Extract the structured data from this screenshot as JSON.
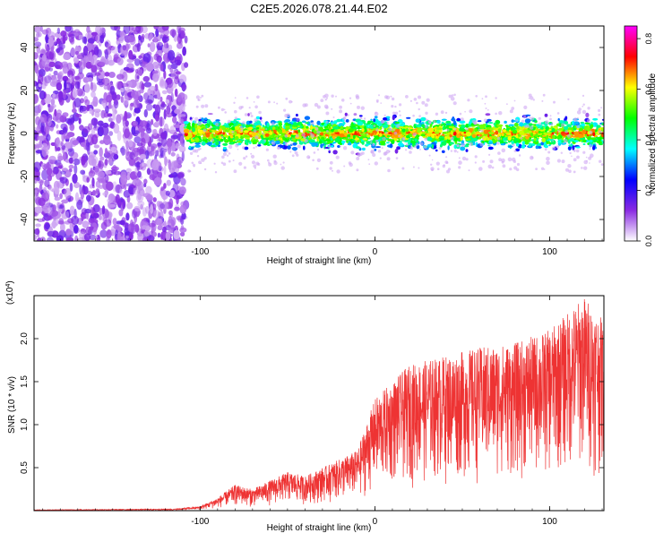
{
  "title": "C2E5.2026.078.21.44.E02",
  "chart_data": [
    {
      "type": "heatmap",
      "xlabel": "Height of straight line (km)",
      "ylabel": "Frequency (Hz)",
      "xlim": [
        -195,
        131
      ],
      "ylim": [
        -50,
        50
      ],
      "xticks": [
        -100,
        0,
        100
      ],
      "yticks": [
        -40,
        -20,
        0,
        20,
        40
      ],
      "trace_center_hz": 0,
      "noise_region_x": [
        -195,
        -108
      ],
      "colorbar": {
        "label": "Normalized spectral amplitude",
        "range": [
          0.0,
          0.85
        ],
        "ticks": [
          "0.0",
          "0.2",
          "0.4",
          "0.6",
          "0.8"
        ],
        "colors": [
          "#ffffff",
          "#8a2be2",
          "#0000ff",
          "#00ffff",
          "#00ff00",
          "#ffff00",
          "#ff0000",
          "#ff00ff"
        ]
      }
    },
    {
      "type": "line",
      "xlabel": "Height of straight line (km)",
      "ylabel": "SNR (10 * v/v)",
      "scale_label": "(x10^4)",
      "xlim": [
        -195,
        131
      ],
      "ylim": [
        0,
        2.5
      ],
      "xticks": [
        -100,
        0,
        100
      ],
      "yticks": [
        "0.5",
        "1.0",
        "1.5",
        "2.0"
      ],
      "color": "#ee3333",
      "envelope": {
        "x": [
          -195,
          -115,
          -100,
          -90,
          -80,
          -70,
          -60,
          -50,
          -40,
          -30,
          -20,
          -10,
          0,
          10,
          20,
          40,
          60,
          80,
          100,
          110,
          120,
          131
        ],
        "y": [
          0.01,
          0.02,
          0.05,
          0.15,
          0.3,
          0.25,
          0.35,
          0.45,
          0.4,
          0.5,
          0.6,
          0.7,
          1.3,
          1.5,
          1.7,
          1.8,
          1.9,
          1.95,
          2.1,
          2.3,
          2.5,
          2.2
        ]
      }
    }
  ]
}
